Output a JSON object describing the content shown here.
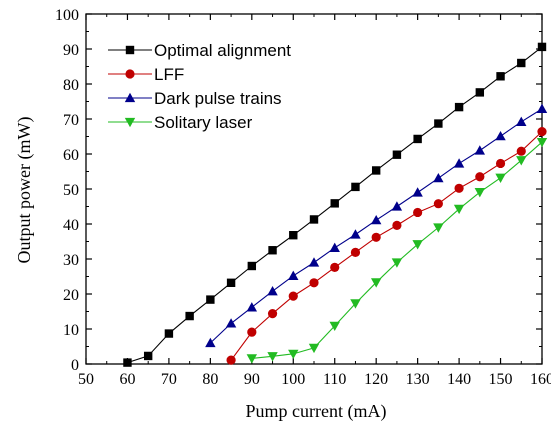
{
  "chart_data": {
    "type": "line",
    "xlabel": "Pump current (mA)",
    "ylabel": "Output power (mW)",
    "xlim": [
      50,
      160
    ],
    "ylim": [
      0,
      100
    ],
    "xticks": [
      50,
      60,
      70,
      80,
      90,
      100,
      110,
      120,
      130,
      140,
      150,
      160
    ],
    "yticks": [
      0,
      10,
      20,
      30,
      40,
      50,
      60,
      70,
      80,
      90,
      100
    ],
    "grid": false,
    "legend_position": "top-left",
    "series": [
      {
        "name": "Optimal alignment",
        "color": "#000000",
        "marker": "square",
        "x": [
          60,
          65,
          70,
          75,
          80,
          85,
          90,
          95,
          100,
          105,
          110,
          115,
          120,
          125,
          130,
          135,
          140,
          145,
          150,
          155,
          160
        ],
        "y": [
          0.4,
          2.3,
          8.7,
          13.7,
          18.4,
          23.2,
          28.0,
          32.5,
          36.8,
          41.3,
          45.9,
          50.6,
          55.3,
          59.8,
          64.3,
          68.7,
          73.4,
          77.6,
          82.2,
          86.0,
          90.6
        ]
      },
      {
        "name": "LFF",
        "color": "#c00000",
        "marker": "circle",
        "x": [
          85,
          90,
          95,
          100,
          105,
          110,
          115,
          120,
          125,
          130,
          135,
          140,
          145,
          150,
          155,
          160
        ],
        "y": [
          1.1,
          9.1,
          14.4,
          19.4,
          23.2,
          27.6,
          31.9,
          36.2,
          39.6,
          43.3,
          45.8,
          50.2,
          53.5,
          57.3,
          60.8,
          66.4
        ]
      },
      {
        "name": "Dark pulse trains",
        "color": "#00008b",
        "marker": "triangle-up",
        "x": [
          80,
          85,
          90,
          95,
          100,
          105,
          110,
          115,
          120,
          125,
          130,
          135,
          140,
          145,
          150,
          155,
          160
        ],
        "y": [
          6.0,
          11.6,
          16.2,
          20.8,
          25.2,
          29.0,
          33.2,
          37.0,
          41.1,
          45.0,
          49.0,
          53.1,
          57.3,
          61.0,
          65.1,
          69.2,
          72.9
        ]
      },
      {
        "name": "Solitary laser",
        "color": "#22bb22",
        "marker": "triangle-down",
        "x": [
          90,
          95,
          100,
          105,
          110,
          115,
          120,
          125,
          130,
          135,
          140,
          145,
          150,
          155,
          160
        ],
        "y": [
          1.6,
          2.2,
          2.9,
          4.6,
          10.9,
          17.3,
          23.3,
          29.0,
          34.2,
          39.0,
          44.3,
          49.1,
          53.2,
          58.2,
          63.4
        ]
      }
    ]
  }
}
